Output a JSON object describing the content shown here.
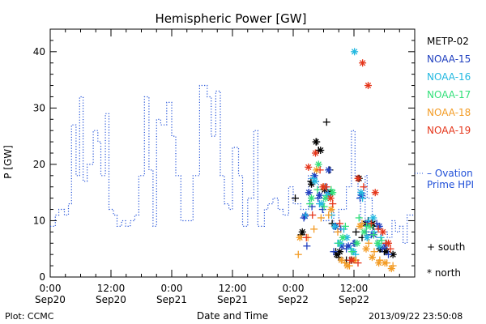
{
  "chart_data": {
    "type": "scatter",
    "title": "Hemispheric Power [GW]",
    "ylabel": "P [GW]",
    "xlabel": "Date and Time",
    "x_unit": "hours since 2013-09-20 00:00",
    "xlim": [
      0,
      72
    ],
    "ylim": [
      0,
      44
    ],
    "y_ticks": [
      0,
      10,
      20,
      30,
      40
    ],
    "x_ticks": [
      {
        "hour": 0,
        "time": "0:00",
        "date": "Sep20"
      },
      {
        "hour": 12,
        "time": "12:00",
        "date": "Sep20"
      },
      {
        "hour": 24,
        "time": "0:00",
        "date": "Sep21"
      },
      {
        "hour": 36,
        "time": "12:00",
        "date": "Sep21"
      },
      {
        "hour": 48,
        "time": "0:00",
        "date": "Sep22"
      },
      {
        "hour": 60,
        "time": "12:00",
        "date": "Sep22"
      }
    ],
    "grid": false,
    "legend_position": "right",
    "series": [
      {
        "name": "Ovation Prime HPI",
        "legend_label": "– Ovation",
        "legend_label_2": "Prime HPI",
        "style": "step-dotted",
        "color": "#1f4fd8",
        "x": [
          0,
          1,
          1.7,
          2.8,
          3.6,
          4.2,
          5.1,
          5.8,
          6.5,
          7.3,
          8.5,
          9.4,
          10.0,
          10.9,
          11.6,
          12.5,
          13.2,
          14.1,
          14.9,
          15.8,
          16.7,
          17.5,
          18.6,
          19.5,
          20.3,
          21.0,
          21.8,
          23.0,
          24.0,
          24.8,
          25.8,
          27.0,
          28.2,
          29.5,
          31.0,
          31.8,
          32.7,
          33.6,
          34.4,
          35.3,
          36.0,
          37.2,
          38.0,
          39.0,
          40.2,
          41.0,
          42.3,
          43.0,
          44.0,
          45.0,
          46.0,
          47.1,
          48.0,
          49.5,
          51.0,
          52.3,
          53.0,
          54.0,
          55.0,
          56.0,
          57.0,
          58.5,
          59.5,
          60.2,
          60.8,
          61.3,
          62.2,
          62.6,
          63.6,
          64.5,
          65.5,
          66.6,
          67.5,
          68.2,
          69.0,
          69.7,
          70.5,
          71.4
        ],
        "y": [
          9,
          11,
          12,
          11,
          13,
          27,
          18,
          32,
          17,
          20,
          26,
          24,
          18,
          29,
          12,
          11,
          9,
          10,
          9,
          10,
          11,
          18,
          32,
          19,
          9,
          28,
          27,
          31,
          25,
          18,
          10,
          10,
          18,
          34,
          32,
          25,
          33,
          18,
          13,
          12,
          23,
          18,
          9,
          14,
          26,
          9,
          12,
          13,
          14,
          12,
          11,
          16,
          13,
          12,
          18,
          17,
          14,
          10,
          12,
          8,
          12,
          16,
          26,
          18,
          14,
          9,
          18,
          14,
          8,
          6,
          8,
          7,
          10,
          8,
          9,
          6,
          11,
          11
        ]
      },
      {
        "name": "METP-02",
        "color": "#000000",
        "south": [
          [
            49.6,
            7.5
          ],
          [
            51.5,
            17
          ],
          [
            52.6,
            24
          ],
          [
            53.0,
            22.5
          ],
          [
            54.6,
            27.5
          ],
          [
            55.2,
            19
          ],
          [
            55.7,
            9.5
          ],
          [
            56.4,
            4.5
          ],
          [
            57.0,
            3.5
          ],
          [
            58.5,
            3
          ],
          [
            60.4,
            8
          ],
          [
            61.6,
            7
          ],
          [
            62.8,
            10
          ],
          [
            63.8,
            9
          ],
          [
            65.1,
            5
          ],
          [
            66.0,
            4.5
          ],
          [
            48.4,
            14
          ]
        ],
        "north": [
          [
            49.8,
            8
          ],
          [
            51.6,
            16.5
          ],
          [
            52.5,
            24
          ],
          [
            53.4,
            22.5
          ],
          [
            54.2,
            15.5
          ],
          [
            55.3,
            15
          ],
          [
            56.6,
            4
          ],
          [
            57.2,
            4.5
          ],
          [
            59.5,
            3
          ],
          [
            61.0,
            17.5
          ],
          [
            62.3,
            9.5
          ],
          [
            63.7,
            9.5
          ],
          [
            65.2,
            5
          ],
          [
            66.4,
            4.5
          ],
          [
            67.7,
            4
          ]
        ]
      },
      {
        "name": "NOAA-15",
        "color": "#1f3fbf",
        "south": [
          [
            50.1,
            10.5
          ],
          [
            50.7,
            5.5
          ],
          [
            51.7,
            12.5
          ],
          [
            52.9,
            14
          ],
          [
            53.8,
            12
          ],
          [
            54.9,
            15
          ],
          [
            56.0,
            4.5
          ],
          [
            57.4,
            8.5
          ],
          [
            58.5,
            5
          ],
          [
            60.0,
            6
          ],
          [
            61.2,
            14
          ],
          [
            62.4,
            8
          ],
          [
            63.4,
            7.5
          ],
          [
            64.5,
            9.5
          ],
          [
            65.6,
            5
          ],
          [
            66.8,
            4
          ]
        ],
        "north": [
          [
            50.3,
            10.8
          ],
          [
            51.1,
            15
          ],
          [
            52.2,
            18
          ],
          [
            53.2,
            14.5
          ],
          [
            54.3,
            16
          ],
          [
            55.0,
            19
          ],
          [
            56.4,
            9
          ],
          [
            57.6,
            5.5
          ],
          [
            58.9,
            5.5
          ],
          [
            60.2,
            6
          ],
          [
            61.5,
            14.5
          ],
          [
            62.7,
            9.5
          ],
          [
            63.9,
            7.5
          ],
          [
            65.0,
            9
          ],
          [
            66.2,
            5.5
          ]
        ]
      },
      {
        "name": "NOAA-16",
        "color": "#22b8e0",
        "south": [
          [
            51.9,
            17.5
          ],
          [
            53.2,
            13
          ],
          [
            54.5,
            14.5
          ],
          [
            55.6,
            11
          ],
          [
            56.8,
            6
          ],
          [
            58.0,
            8.5
          ],
          [
            59.4,
            5
          ],
          [
            60.3,
            4
          ],
          [
            61.7,
            14
          ],
          [
            62.9,
            10
          ],
          [
            64.0,
            8
          ],
          [
            65.3,
            7
          ],
          [
            66.4,
            6
          ],
          [
            50.5,
            11
          ]
        ],
        "north": [
          [
            52.3,
            17
          ],
          [
            53.6,
            13
          ],
          [
            54.9,
            14.5
          ],
          [
            56.2,
            9
          ],
          [
            57.3,
            6
          ],
          [
            58.6,
            7
          ],
          [
            59.9,
            4.5
          ],
          [
            60.1,
            40
          ],
          [
            61.4,
            15
          ],
          [
            62.6,
            7
          ],
          [
            63.8,
            10.5
          ],
          [
            65.0,
            5.5
          ]
        ]
      },
      {
        "name": "NOAA-17",
        "color": "#33e07a",
        "south": [
          [
            51.3,
            13
          ],
          [
            52.8,
            15.5
          ],
          [
            54.1,
            12.5
          ],
          [
            55.5,
            15.5
          ],
          [
            57.0,
            6
          ],
          [
            58.3,
            9
          ],
          [
            59.6,
            4.5
          ],
          [
            61.0,
            10.5
          ],
          [
            62.5,
            9
          ],
          [
            63.9,
            7.5
          ],
          [
            65.5,
            6.5
          ]
        ],
        "north": [
          [
            51.6,
            14
          ],
          [
            53.0,
            20
          ],
          [
            54.4,
            14
          ],
          [
            55.8,
            15
          ],
          [
            57.8,
            7
          ],
          [
            60.6,
            6
          ],
          [
            62.0,
            8
          ],
          [
            63.2,
            9
          ],
          [
            64.7,
            6
          ]
        ]
      },
      {
        "name": "NOAA-18",
        "color": "#f39c25",
        "south": [
          [
            49.0,
            4
          ],
          [
            50.9,
            7
          ],
          [
            52.1,
            8.5
          ],
          [
            53.5,
            10.5
          ],
          [
            55.0,
            11
          ],
          [
            56.8,
            8
          ],
          [
            58.2,
            2.5
          ],
          [
            59.1,
            2
          ],
          [
            60.4,
            3
          ],
          [
            61.6,
            9.5
          ],
          [
            62.9,
            6
          ],
          [
            64.0,
            4.5
          ],
          [
            65.1,
            3
          ],
          [
            66.5,
            2.5
          ],
          [
            67.7,
            2
          ]
        ],
        "north": [
          [
            49.3,
            7
          ],
          [
            52.6,
            19
          ],
          [
            54.0,
            16
          ],
          [
            55.5,
            12
          ],
          [
            57.5,
            3
          ],
          [
            58.7,
            2
          ],
          [
            60.0,
            3
          ],
          [
            61.2,
            9
          ],
          [
            62.4,
            5
          ],
          [
            63.6,
            3.5
          ],
          [
            64.9,
            2.5
          ],
          [
            66.1,
            2.5
          ],
          [
            67.4,
            1.5
          ]
        ]
      },
      {
        "name": "NOAA-19",
        "color": "#e5361b",
        "south": [
          [
            50.6,
            7
          ],
          [
            51.8,
            11
          ],
          [
            53.3,
            19
          ],
          [
            54.6,
            16
          ],
          [
            55.8,
            13
          ],
          [
            57.2,
            9.5
          ],
          [
            59.2,
            3
          ],
          [
            60.8,
            2.5
          ],
          [
            61.9,
            16
          ],
          [
            63.4,
            9.5
          ],
          [
            64.8,
            8.5
          ],
          [
            66.3,
            6
          ],
          [
            67.2,
            5
          ]
        ],
        "north": [
          [
            51.0,
            19.5
          ],
          [
            52.4,
            22
          ],
          [
            53.9,
            16
          ],
          [
            55.4,
            14
          ],
          [
            59.6,
            3
          ],
          [
            60.8,
            17.5
          ],
          [
            61.7,
            38
          ],
          [
            62.8,
            34
          ],
          [
            64.2,
            15
          ],
          [
            65.7,
            8
          ],
          [
            66.8,
            6
          ]
        ]
      }
    ]
  },
  "legend": {
    "south_label": "+ south",
    "north_label": "* north"
  },
  "footer": {
    "left": "Plot: CCMC",
    "right": "2013/09/22 23:50:08"
  }
}
